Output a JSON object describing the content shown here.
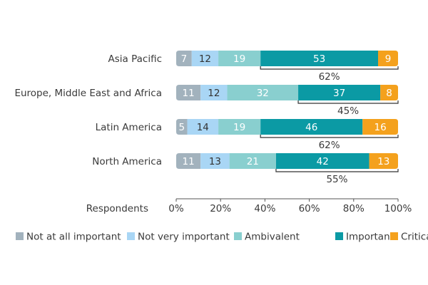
{
  "chart_data": {
    "type": "bar",
    "orientation": "horizontal",
    "stacked": true,
    "categories": [
      "Asia Pacific",
      "Europe, Middle East and Africa",
      "Latin America",
      "North America"
    ],
    "series": [
      {
        "name": "Not at all important",
        "values": [
          7,
          11,
          5,
          11
        ],
        "color": "#a2b2bd",
        "label_color": "#ffffff"
      },
      {
        "name": "Not very important",
        "values": [
          12,
          12,
          14,
          13
        ],
        "color": "#a9d6f5",
        "label_color": "#333333"
      },
      {
        "name": "Ambivalent",
        "values": [
          19,
          32,
          19,
          21
        ],
        "color": "#89cfcf",
        "label_color": "#ffffff"
      },
      {
        "name": "Important",
        "values": [
          53,
          37,
          46,
          42
        ],
        "color": "#0b9aa4",
        "label_color": "#ffffff"
      },
      {
        "name": "Critical",
        "values": [
          9,
          8,
          16,
          13
        ],
        "color": "#f4a11d",
        "label_color": "#ffffff"
      }
    ],
    "bracket_totals": [
      "62%",
      "45%",
      "62%",
      "55%"
    ],
    "xlabel": "Respondents",
    "xlim": [
      0,
      100
    ],
    "xticks": [
      "0%",
      "20%",
      "40%",
      "60%",
      "80%",
      "100%"
    ],
    "legend": {
      "position": "bottom"
    },
    "grid": false
  },
  "colors": {
    "text": "#3a3a3a",
    "axis": "#555555",
    "bracket": "#333333"
  }
}
